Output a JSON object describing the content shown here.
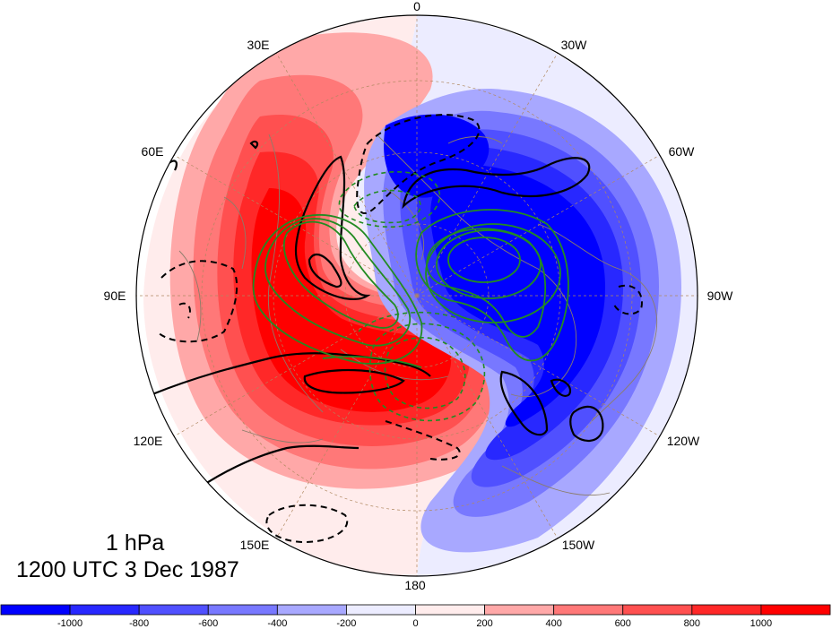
{
  "map": {
    "projection": "north-polar-stereographic",
    "longitude_labels": [
      "0",
      "30W",
      "60W",
      "90W",
      "120W",
      "150W",
      "180",
      "150E",
      "120E",
      "90E",
      "60E",
      "30E"
    ]
  },
  "titles": {
    "level": "1 hPa",
    "time": "1200 UTC 3 Dec 1987"
  },
  "colorbar": {
    "tick_labels": [
      "-1000",
      "-800",
      "-600",
      "-400",
      "-200",
      "0",
      "200",
      "400",
      "600",
      "800",
      "1000"
    ],
    "colors": [
      "#0000ff",
      "#2828ff",
      "#5050ff",
      "#7878ff",
      "#a8a8ff",
      "#ececff",
      "#ffecec",
      "#ffa8a8",
      "#ff7878",
      "#ff5050",
      "#ff2828",
      "#ff0000"
    ]
  },
  "colors": {
    "positive_max": "#ff0000",
    "negative_max": "#0000ff",
    "contour_solid": "#000000",
    "contour_green": "#228b22",
    "coastline": "#8b7d6b"
  }
}
